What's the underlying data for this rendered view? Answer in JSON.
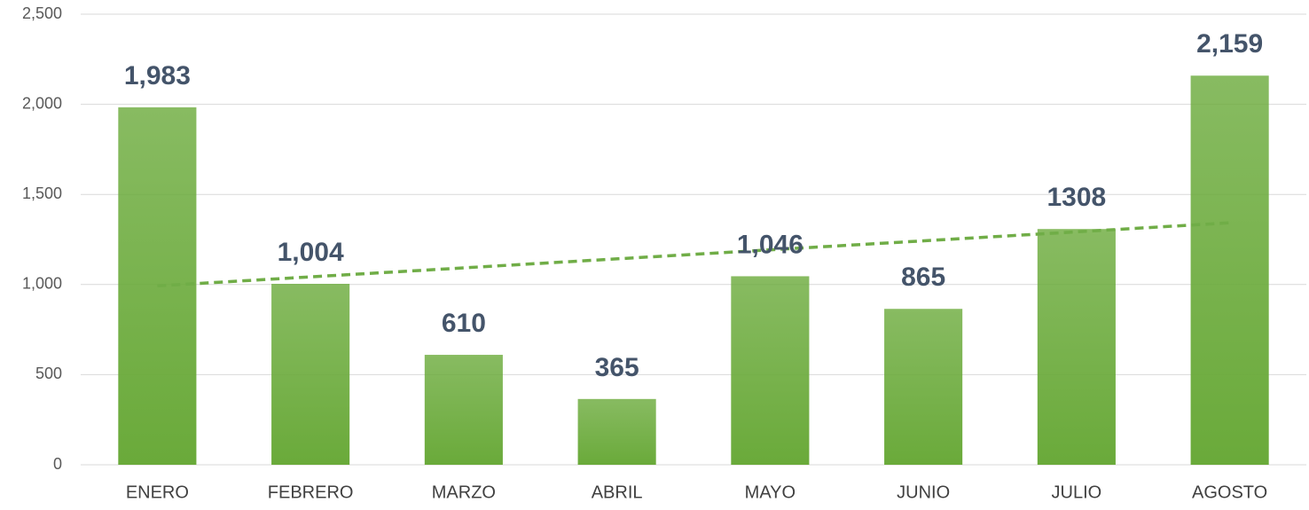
{
  "chart_data": {
    "type": "bar",
    "categories": [
      "ENERO",
      "FEBRERO",
      "MARZO",
      "ABRIL",
      "MAYO",
      "JUNIO",
      "JULIO",
      "AGOSTO"
    ],
    "values": [
      1983,
      1004,
      610,
      365,
      1046,
      865,
      1308,
      2159
    ],
    "value_labels": [
      "1,983",
      "1,004",
      "610",
      "365",
      "1,046",
      "865",
      "1308",
      "2,159"
    ],
    "color": "#6aaa3a",
    "trendline": {
      "type": "linear",
      "color": "#70ad47",
      "dashed": true
    },
    "ylim": [
      0,
      2500
    ],
    "yticks": [
      0,
      500,
      {
        "value": 1000,
        "label": "1,000"
      },
      {
        "value": 1500,
        "label": "1,500"
      },
      {
        "value": 2000,
        "label": "2,000"
      },
      {
        "value": 2500,
        "label": "2,500"
      }
    ],
    "grid": true
  }
}
